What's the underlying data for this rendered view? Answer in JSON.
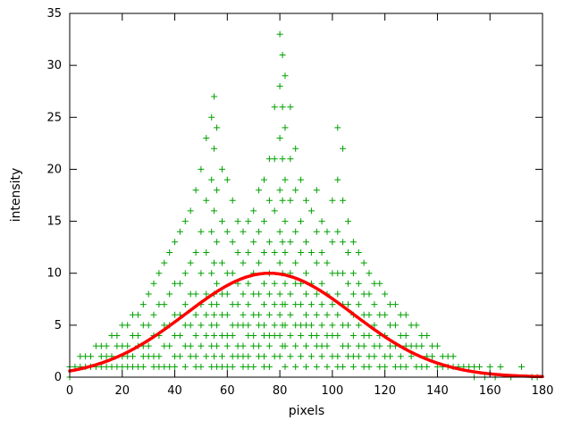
{
  "chart_data": {
    "type": "scatter",
    "title": "",
    "xlabel": "pixels",
    "ylabel": "intensity",
    "xlim": [
      0,
      180
    ],
    "ylim": [
      0,
      35
    ],
    "x_ticks": [
      0,
      20,
      40,
      60,
      80,
      100,
      120,
      140,
      160,
      180
    ],
    "y_ticks": [
      0,
      5,
      10,
      15,
      20,
      25,
      30,
      35
    ],
    "grid": false,
    "legend": "none",
    "background_color": "#ffffff",
    "border_color": "#000000",
    "scatter_series": {
      "name": "intensity-samples",
      "marker": "plus",
      "color": "#00a000",
      "marker_size": 7,
      "columns": [
        [
          0,
          [
            1,
            0
          ]
        ],
        [
          2,
          [
            1
          ]
        ],
        [
          4,
          [
            2,
            1
          ]
        ],
        [
          6,
          [
            2,
            1
          ]
        ],
        [
          8,
          [
            2,
            1
          ]
        ],
        [
          10,
          [
            3,
            1
          ]
        ],
        [
          12,
          [
            3,
            2,
            1
          ]
        ],
        [
          14,
          [
            3,
            2,
            1
          ]
        ],
        [
          16,
          [
            4,
            2,
            1
          ]
        ],
        [
          18,
          [
            4,
            3,
            1
          ]
        ],
        [
          20,
          [
            5,
            3,
            2,
            1
          ]
        ],
        [
          22,
          [
            5,
            3,
            2,
            1
          ]
        ],
        [
          24,
          [
            6,
            4,
            2,
            1
          ]
        ],
        [
          26,
          [
            6,
            4,
            3,
            1
          ]
        ],
        [
          28,
          [
            7,
            5,
            3,
            2,
            1
          ]
        ],
        [
          30,
          [
            8,
            5,
            3,
            2
          ]
        ],
        [
          32,
          [
            9,
            6,
            4,
            2,
            1
          ]
        ],
        [
          34,
          [
            10,
            7,
            4,
            2,
            1
          ]
        ],
        [
          36,
          [
            11,
            7,
            5,
            3,
            1
          ]
        ],
        [
          38,
          [
            12,
            8,
            5,
            3,
            1
          ]
        ],
        [
          40,
          [
            13,
            9,
            6,
            4,
            2,
            1
          ]
        ],
        [
          42,
          [
            14,
            9,
            6,
            4,
            2
          ]
        ],
        [
          44,
          [
            15,
            10,
            7,
            5,
            3,
            1
          ]
        ],
        [
          46,
          [
            16,
            11,
            8,
            5,
            3,
            2
          ]
        ],
        [
          48,
          [
            18,
            12,
            8,
            6,
            4,
            2,
            1
          ]
        ],
        [
          50,
          [
            20,
            14,
            10,
            7,
            5,
            3,
            1
          ]
        ],
        [
          52,
          [
            23,
            17,
            12,
            8,
            6,
            4,
            2
          ]
        ],
        [
          54,
          [
            25,
            19,
            14,
            10,
            7,
            5,
            3,
            1
          ]
        ],
        [
          55,
          [
            27,
            22,
            16,
            11,
            8,
            6,
            4,
            2
          ]
        ],
        [
          56,
          [
            24,
            18,
            13,
            9,
            7,
            5,
            3,
            1
          ]
        ],
        [
          58,
          [
            20,
            15,
            11,
            8,
            6,
            4,
            2,
            1
          ]
        ],
        [
          60,
          [
            19,
            14,
            10,
            8,
            6,
            4,
            3,
            1
          ]
        ],
        [
          62,
          [
            17,
            13,
            10,
            7,
            5,
            4,
            2,
            1
          ]
        ],
        [
          64,
          [
            15,
            12,
            9,
            7,
            5,
            3,
            2
          ]
        ],
        [
          66,
          [
            14,
            11,
            8,
            6,
            5,
            3,
            2,
            1
          ]
        ],
        [
          68,
          [
            15,
            12,
            9,
            7,
            5,
            4,
            2,
            1
          ]
        ],
        [
          70,
          [
            16,
            13,
            10,
            8,
            6,
            4,
            3,
            1
          ]
        ],
        [
          72,
          [
            18,
            14,
            11,
            8,
            6,
            5,
            3,
            2
          ]
        ],
        [
          74,
          [
            19,
            15,
            12,
            9,
            7,
            5,
            4,
            2,
            1
          ]
        ],
        [
          76,
          [
            21,
            17,
            13,
            10,
            8,
            6,
            4,
            3,
            1
          ]
        ],
        [
          78,
          [
            26,
            21,
            16,
            12,
            9,
            7,
            5,
            4,
            2
          ]
        ],
        [
          80,
          [
            33,
            28,
            23,
            18,
            14,
            11,
            8,
            6,
            4,
            2
          ]
        ],
        [
          81,
          [
            31,
            26,
            21,
            17,
            13,
            10,
            7,
            5,
            3
          ]
        ],
        [
          82,
          [
            29,
            24,
            19,
            15,
            12,
            9,
            7,
            5,
            3,
            1
          ]
        ],
        [
          84,
          [
            26,
            21,
            17,
            13,
            10,
            8,
            6,
            4,
            2
          ]
        ],
        [
          86,
          [
            22,
            18,
            14,
            11,
            9,
            7,
            5,
            3,
            1
          ]
        ],
        [
          88,
          [
            19,
            15,
            12,
            9,
            7,
            5,
            4,
            2
          ]
        ],
        [
          90,
          [
            17,
            13,
            10,
            8,
            6,
            5,
            3,
            1
          ]
        ],
        [
          92,
          [
            16,
            12,
            9,
            7,
            5,
            4,
            2
          ]
        ],
        [
          94,
          [
            18,
            14,
            11,
            8,
            6,
            4,
            3,
            1
          ]
        ],
        [
          96,
          [
            15,
            12,
            9,
            7,
            5,
            3,
            2
          ]
        ],
        [
          98,
          [
            14,
            11,
            8,
            6,
            4,
            3,
            1
          ]
        ],
        [
          100,
          [
            17,
            13,
            10,
            7,
            5,
            4,
            2
          ]
        ],
        [
          102,
          [
            24,
            19,
            14,
            10,
            8,
            6,
            4,
            2,
            1
          ]
        ],
        [
          104,
          [
            22,
            17,
            13,
            10,
            7,
            5,
            3,
            1
          ]
        ],
        [
          106,
          [
            15,
            12,
            9,
            7,
            5,
            3,
            2
          ]
        ],
        [
          108,
          [
            13,
            10,
            8,
            6,
            4,
            2,
            1
          ]
        ],
        [
          110,
          [
            12,
            9,
            7,
            5,
            3,
            2
          ]
        ],
        [
          112,
          [
            11,
            8,
            6,
            4,
            3,
            1
          ]
        ],
        [
          114,
          [
            10,
            8,
            6,
            4,
            2,
            1
          ]
        ],
        [
          116,
          [
            9,
            7,
            5,
            3,
            2
          ]
        ],
        [
          118,
          [
            9,
            6,
            4,
            3,
            1
          ]
        ],
        [
          120,
          [
            8,
            6,
            4,
            2,
            1
          ]
        ],
        [
          122,
          [
            7,
            5,
            3,
            2
          ]
        ],
        [
          124,
          [
            7,
            5,
            3,
            1
          ]
        ],
        [
          126,
          [
            6,
            4,
            2,
            1
          ]
        ],
        [
          128,
          [
            6,
            4,
            3,
            1
          ]
        ],
        [
          130,
          [
            5,
            3,
            2
          ]
        ],
        [
          132,
          [
            5,
            3,
            1
          ]
        ],
        [
          134,
          [
            4,
            3,
            1
          ]
        ],
        [
          136,
          [
            4,
            2,
            1
          ]
        ],
        [
          138,
          [
            3,
            2
          ]
        ],
        [
          140,
          [
            3,
            1
          ]
        ],
        [
          142,
          [
            2,
            1
          ]
        ],
        [
          144,
          [
            2,
            1
          ]
        ],
        [
          146,
          [
            2,
            1
          ]
        ],
        [
          148,
          [
            1
          ]
        ],
        [
          150,
          [
            1
          ]
        ],
        [
          152,
          [
            1
          ]
        ],
        [
          154,
          [
            1,
            0
          ]
        ],
        [
          156,
          [
            1
          ]
        ],
        [
          158,
          [
            0
          ]
        ],
        [
          160,
          [
            1
          ]
        ],
        [
          162,
          [
            0
          ]
        ],
        [
          164,
          [
            1
          ]
        ],
        [
          168,
          [
            0
          ]
        ],
        [
          172,
          [
            1
          ]
        ],
        [
          176,
          [
            0
          ]
        ],
        [
          178,
          [
            0
          ]
        ]
      ]
    },
    "fit_curve": {
      "name": "gaussian-fit",
      "color": "#ff0000",
      "line_width": 3.5,
      "amplitude": 10,
      "mean": 76,
      "sigma": 32
    }
  }
}
